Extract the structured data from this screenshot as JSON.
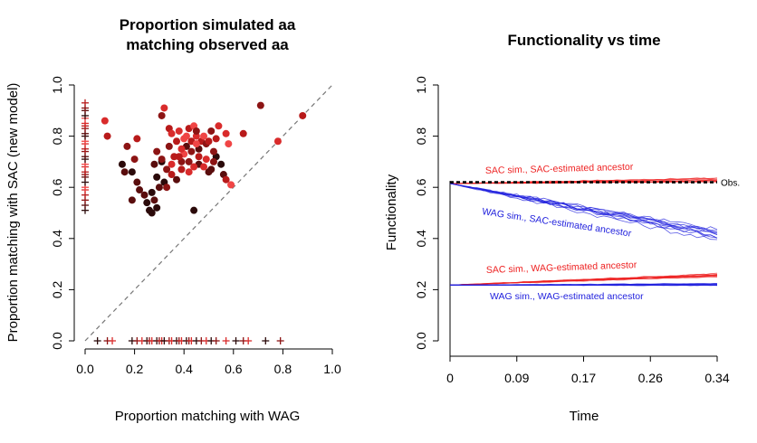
{
  "chart_data": [
    {
      "type": "scatter",
      "title_lines": [
        "Proportion simulated aa",
        "matching observed aa"
      ],
      "xlabel": "Proportion matching with WAG",
      "ylabel": "Proportion matching with SAC (new model)",
      "xlim": [
        0,
        1
      ],
      "ylim": [
        0,
        1
      ],
      "x_ticks": [
        "0.0",
        "0.2",
        "0.4",
        "0.6",
        "0.8",
        "1.0"
      ],
      "y_ticks": [
        "0.0",
        "0.2",
        "0.4",
        "0.6",
        "0.8",
        "1.0"
      ],
      "reference_line": "y = x (dashed grey)",
      "colors": [
        "#2b0a0a",
        "#5a0d0d",
        "#8c1414",
        "#b81a1a",
        "#d92b2b",
        "#f04545"
      ],
      "circles": [
        [
          0.08,
          0.86,
          4
        ],
        [
          0.09,
          0.8,
          3
        ],
        [
          0.32,
          0.91,
          4
        ],
        [
          0.31,
          0.88,
          2
        ],
        [
          0.34,
          0.83,
          3
        ],
        [
          0.38,
          0.82,
          4
        ],
        [
          0.4,
          0.79,
          5
        ],
        [
          0.42,
          0.83,
          3
        ],
        [
          0.44,
          0.84,
          5
        ],
        [
          0.45,
          0.8,
          4
        ],
        [
          0.47,
          0.78,
          3
        ],
        [
          0.43,
          0.74,
          2
        ],
        [
          0.48,
          0.8,
          5
        ],
        [
          0.41,
          0.76,
          1
        ],
        [
          0.36,
          0.72,
          3
        ],
        [
          0.39,
          0.7,
          2
        ],
        [
          0.46,
          0.69,
          1
        ],
        [
          0.44,
          0.68,
          4
        ],
        [
          0.5,
          0.66,
          1
        ],
        [
          0.53,
          0.72,
          0
        ],
        [
          0.29,
          0.74,
          2
        ],
        [
          0.28,
          0.69,
          1
        ],
        [
          0.31,
          0.7,
          0
        ],
        [
          0.33,
          0.67,
          2
        ],
        [
          0.35,
          0.65,
          3
        ],
        [
          0.37,
          0.63,
          1
        ],
        [
          0.32,
          0.62,
          0
        ],
        [
          0.3,
          0.6,
          1
        ],
        [
          0.27,
          0.58,
          0
        ],
        [
          0.24,
          0.57,
          1
        ],
        [
          0.25,
          0.54,
          0
        ],
        [
          0.28,
          0.55,
          1
        ],
        [
          0.26,
          0.51,
          0
        ],
        [
          0.29,
          0.52,
          0
        ],
        [
          0.27,
          0.5,
          0
        ],
        [
          0.19,
          0.55,
          1
        ],
        [
          0.21,
          0.62,
          1
        ],
        [
          0.19,
          0.66,
          0
        ],
        [
          0.15,
          0.69,
          0
        ],
        [
          0.16,
          0.66,
          1
        ],
        [
          0.17,
          0.76,
          2
        ],
        [
          0.21,
          0.79,
          3
        ],
        [
          0.2,
          0.71,
          2
        ],
        [
          0.42,
          0.66,
          4
        ],
        [
          0.39,
          0.67,
          3
        ],
        [
          0.35,
          0.69,
          4
        ],
        [
          0.31,
          0.71,
          2
        ],
        [
          0.4,
          0.73,
          5
        ],
        [
          0.51,
          0.67,
          1
        ],
        [
          0.52,
          0.7,
          2
        ],
        [
          0.46,
          0.72,
          3
        ],
        [
          0.49,
          0.71,
          4
        ],
        [
          0.41,
          0.8,
          5
        ],
        [
          0.43,
          0.78,
          3
        ],
        [
          0.45,
          0.82,
          2
        ],
        [
          0.37,
          0.78,
          3
        ],
        [
          0.39,
          0.75,
          4
        ],
        [
          0.49,
          0.77,
          2
        ],
        [
          0.5,
          0.78,
          3
        ],
        [
          0.52,
          0.74,
          2
        ],
        [
          0.55,
          0.69,
          0
        ],
        [
          0.56,
          0.65,
          1
        ],
        [
          0.57,
          0.63,
          3
        ],
        [
          0.59,
          0.61,
          5
        ],
        [
          0.58,
          0.77,
          5
        ],
        [
          0.57,
          0.81,
          4
        ],
        [
          0.54,
          0.84,
          4
        ],
        [
          0.53,
          0.79,
          3
        ],
        [
          0.64,
          0.81,
          3
        ],
        [
          0.71,
          0.92,
          2
        ],
        [
          0.78,
          0.78,
          4
        ],
        [
          0.88,
          0.88,
          3
        ],
        [
          0.44,
          0.51,
          0
        ],
        [
          0.34,
          0.76,
          2
        ],
        [
          0.46,
          0.75,
          1
        ],
        [
          0.42,
          0.7,
          2
        ],
        [
          0.38,
          0.72,
          3
        ],
        [
          0.48,
          0.68,
          4
        ],
        [
          0.35,
          0.81,
          4
        ],
        [
          0.51,
          0.82,
          2
        ],
        [
          0.29,
          0.64,
          0
        ],
        [
          0.33,
          0.6,
          2
        ],
        [
          0.22,
          0.59,
          1
        ],
        [
          0.45,
          0.77,
          5
        ]
      ],
      "crosses_x_zero_y": [
        0.51,
        0.53,
        0.55,
        0.57,
        0.59,
        0.6,
        0.62,
        0.64,
        0.65,
        0.66,
        0.68,
        0.69,
        0.71,
        0.72,
        0.74,
        0.75,
        0.77,
        0.78,
        0.8,
        0.81,
        0.83,
        0.84,
        0.85,
        0.87,
        0.88,
        0.9,
        0.91,
        0.93
      ],
      "crosses_y_zero_x": [
        0.05,
        0.09,
        0.11,
        0.19,
        0.21,
        0.23,
        0.25,
        0.26,
        0.27,
        0.29,
        0.3,
        0.31,
        0.32,
        0.34,
        0.35,
        0.37,
        0.38,
        0.39,
        0.41,
        0.42,
        0.43,
        0.45,
        0.47,
        0.49,
        0.51,
        0.53,
        0.57,
        0.61,
        0.64,
        0.66,
        0.73,
        0.79
      ]
    },
    {
      "type": "line",
      "title": "Functionality vs time",
      "xlabel": "Time",
      "ylabel": "Functionality",
      "xlim": [
        0,
        0.34
      ],
      "ylim": [
        0,
        1
      ],
      "x_ticks": [
        "0",
        "0.09",
        "0.17",
        "0.26",
        "0.34"
      ],
      "y_ticks": [
        "0.0",
        "0.2",
        "0.4",
        "0.6",
        "0.8",
        "1.0"
      ],
      "series": [
        {
          "name": "SAC sim., SAC-estimated ancestor",
          "color": "#ee2222",
          "start": 0.615,
          "end": 0.63,
          "spread": 0.008,
          "count": 10
        },
        {
          "name": "WAG sim., SAC-estimated ancestor",
          "color": "#2222dd",
          "start": 0.615,
          "end": 0.412,
          "spread": 0.03,
          "count": 10
        },
        {
          "name": "SAC sim., WAG-estimated ancestor",
          "color": "#ee2222",
          "start": 0.218,
          "end": 0.257,
          "spread": 0.007,
          "count": 10
        },
        {
          "name": "WAG sim., WAG-estimated ancestor",
          "color": "#2222dd",
          "start": 0.218,
          "end": 0.22,
          "spread": 0.004,
          "count": 10
        }
      ],
      "observed": {
        "label": "Obs.",
        "value": 0.62,
        "color": "#000000"
      },
      "annotations": [
        {
          "text": "SAC sim., SAC-estimated ancestor",
          "color": "#ee2222"
        },
        {
          "text": "WAG sim., SAC-estimated ancestor",
          "color": "#2222dd"
        },
        {
          "text": "SAC sim., WAG-estimated ancestor",
          "color": "#ee2222"
        },
        {
          "text": "WAG sim., WAG-estimated ancestor",
          "color": "#2222dd"
        }
      ]
    }
  ]
}
